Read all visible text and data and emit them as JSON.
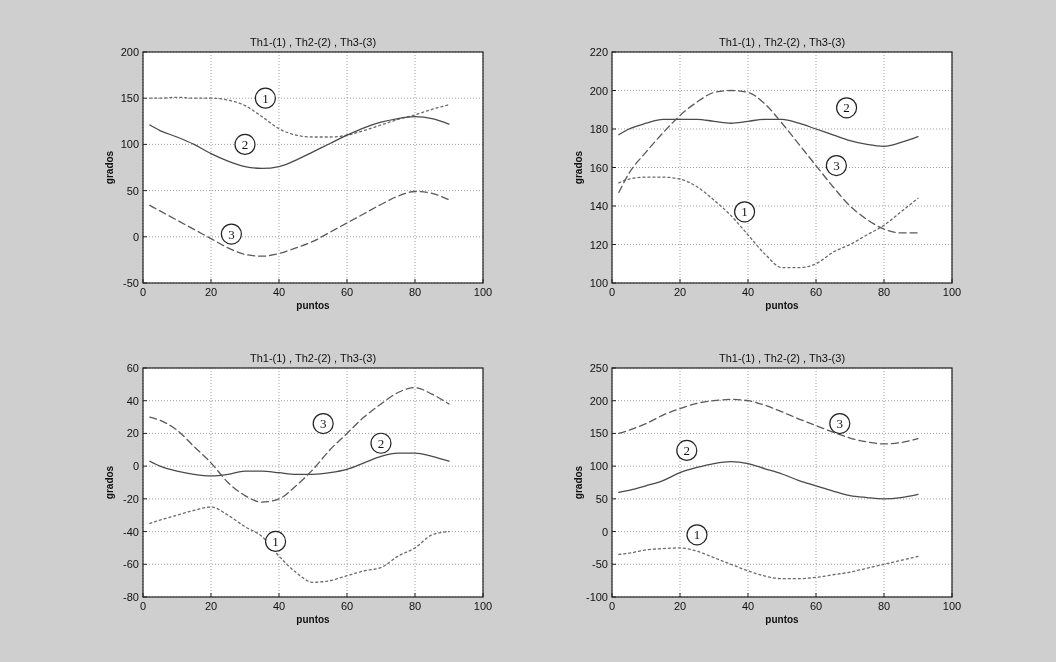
{
  "chart_data": [
    {
      "type": "line",
      "title": "Th1-(1) , Th2-(2) , Th3-(3)",
      "xlabel": "puntos",
      "ylabel": "grados",
      "xlim": [
        0,
        100
      ],
      "xticks": [
        0,
        20,
        40,
        60,
        80,
        100
      ],
      "ylim": [
        -50,
        200
      ],
      "yticks": [
        -50,
        0,
        50,
        100,
        150,
        200
      ],
      "grid": true,
      "x": [
        2,
        5,
        10,
        15,
        20,
        25,
        30,
        35,
        40,
        45,
        50,
        55,
        60,
        65,
        70,
        75,
        80,
        85,
        90
      ],
      "series": [
        {
          "color": "#6a6a6a",
          "line_style": "dotted",
          "values": [
            150,
            150,
            151,
            150,
            150,
            148,
            142,
            130,
            117,
            110,
            108,
            108,
            110,
            115,
            121,
            127,
            132,
            138,
            143
          ]
        },
        {
          "color": "#4a4a4a",
          "line_style": "solid",
          "values": [
            121,
            115,
            108,
            100,
            90,
            82,
            76,
            74,
            76,
            83,
            92,
            101,
            110,
            118,
            124,
            128,
            130,
            128,
            122
          ]
        },
        {
          "color": "#5a5a5a",
          "line_style": "dashed",
          "values": [
            34,
            28,
            18,
            8,
            -2,
            -12,
            -19,
            -21,
            -18,
            -12,
            -5,
            5,
            15,
            25,
            35,
            44,
            49,
            47,
            40
          ]
        }
      ],
      "annotations": [
        {
          "text": "1",
          "x": 36,
          "y": 150
        },
        {
          "text": "2",
          "x": 30,
          "y": 100
        },
        {
          "text": "3",
          "x": 26,
          "y": 3
        }
      ]
    },
    {
      "type": "line",
      "title": "Th1-(1) , Th2-(2) , Th3-(3)",
      "xlabel": "puntos",
      "ylabel": "grados",
      "xlim": [
        0,
        100
      ],
      "xticks": [
        0,
        20,
        40,
        60,
        80,
        100
      ],
      "ylim": [
        100,
        220
      ],
      "yticks": [
        100,
        120,
        140,
        160,
        180,
        200,
        220
      ],
      "grid": true,
      "x": [
        2,
        5,
        10,
        15,
        20,
        25,
        30,
        35,
        40,
        45,
        50,
        55,
        60,
        65,
        70,
        75,
        80,
        85,
        90
      ],
      "series": [
        {
          "color": "#6a6a6a",
          "line_style": "dotted",
          "values": [
            152,
            154,
            155,
            155,
            154,
            150,
            143,
            135,
            125,
            115,
            108,
            108,
            110,
            116,
            120,
            125,
            130,
            137,
            144
          ]
        },
        {
          "color": "#4a4a4a",
          "line_style": "solid",
          "values": [
            177,
            180,
            183,
            185,
            185,
            185,
            184,
            183,
            184,
            185,
            185,
            183,
            180,
            177,
            174,
            172,
            171,
            173,
            176
          ]
        },
        {
          "color": "#5a5a5a",
          "line_style": "dashed",
          "values": [
            147,
            157,
            168,
            178,
            187,
            194,
            199,
            200,
            199,
            193,
            183,
            172,
            161,
            150,
            140,
            133,
            128,
            126,
            126
          ]
        }
      ],
      "annotations": [
        {
          "text": "2",
          "x": 69,
          "y": 191
        },
        {
          "text": "3",
          "x": 66,
          "y": 161
        },
        {
          "text": "1",
          "x": 39,
          "y": 137
        }
      ]
    },
    {
      "type": "line",
      "title": "Th1-(1) , Th2-(2) , Th3-(3)",
      "xlabel": "puntos",
      "ylabel": "grados",
      "xlim": [
        0,
        100
      ],
      "xticks": [
        0,
        20,
        40,
        60,
        80,
        100
      ],
      "ylim": [
        -80,
        60
      ],
      "yticks": [
        -80,
        -60,
        -40,
        -20,
        0,
        20,
        40,
        60
      ],
      "grid": true,
      "x": [
        2,
        5,
        10,
        15,
        20,
        25,
        30,
        35,
        40,
        45,
        50,
        55,
        60,
        65,
        70,
        75,
        80,
        85,
        90
      ],
      "series": [
        {
          "color": "#6a6a6a",
          "line_style": "dotted",
          "values": [
            -35,
            -33,
            -30,
            -27,
            -25,
            -30,
            -37,
            -43,
            -55,
            -65,
            -71,
            -70,
            -67,
            -64,
            -62,
            -55,
            -50,
            -42,
            -40
          ]
        },
        {
          "color": "#4a4a4a",
          "line_style": "solid",
          "values": [
            3,
            0,
            -3,
            -5,
            -6,
            -5,
            -3,
            -3,
            -4,
            -5,
            -5,
            -4,
            -2,
            2,
            6,
            8,
            8,
            6,
            3
          ]
        },
        {
          "color": "#5a5a5a",
          "line_style": "dashed",
          "values": [
            30,
            28,
            22,
            12,
            2,
            -10,
            -18,
            -22,
            -20,
            -12,
            -2,
            10,
            20,
            30,
            38,
            45,
            48,
            44,
            38
          ]
        }
      ],
      "annotations": [
        {
          "text": "3",
          "x": 53,
          "y": 26
        },
        {
          "text": "2",
          "x": 70,
          "y": 14
        },
        {
          "text": "1",
          "x": 39,
          "y": -46
        }
      ]
    },
    {
      "type": "line",
      "title": "Th1-(1) , Th2-(2) , Th3-(3)",
      "xlabel": "puntos",
      "ylabel": "grados",
      "xlim": [
        0,
        100
      ],
      "xticks": [
        0,
        20,
        40,
        60,
        80,
        100
      ],
      "ylim": [
        -100,
        250
      ],
      "yticks": [
        -100,
        -50,
        0,
        50,
        100,
        150,
        200,
        250
      ],
      "grid": true,
      "x": [
        2,
        5,
        10,
        15,
        20,
        25,
        30,
        35,
        40,
        45,
        50,
        55,
        60,
        65,
        70,
        75,
        80,
        85,
        90
      ],
      "series": [
        {
          "color": "#6a6a6a",
          "line_style": "dotted",
          "values": [
            -35,
            -33,
            -28,
            -26,
            -25,
            -30,
            -40,
            -50,
            -60,
            -68,
            -72,
            -72,
            -70,
            -66,
            -62,
            -56,
            -50,
            -44,
            -38
          ]
        },
        {
          "color": "#4a4a4a",
          "line_style": "solid",
          "values": [
            60,
            63,
            70,
            78,
            90,
            98,
            104,
            107,
            104,
            96,
            88,
            78,
            70,
            62,
            55,
            52,
            50,
            52,
            57
          ]
        },
        {
          "color": "#5a5a5a",
          "line_style": "dashed",
          "values": [
            150,
            155,
            165,
            178,
            188,
            196,
            200,
            202,
            200,
            193,
            183,
            172,
            162,
            152,
            143,
            137,
            134,
            136,
            142
          ]
        }
      ],
      "annotations": [
        {
          "text": "3",
          "x": 67,
          "y": 165
        },
        {
          "text": "2",
          "x": 22,
          "y": 124
        },
        {
          "text": "1",
          "x": 25,
          "y": -5
        }
      ]
    }
  ]
}
